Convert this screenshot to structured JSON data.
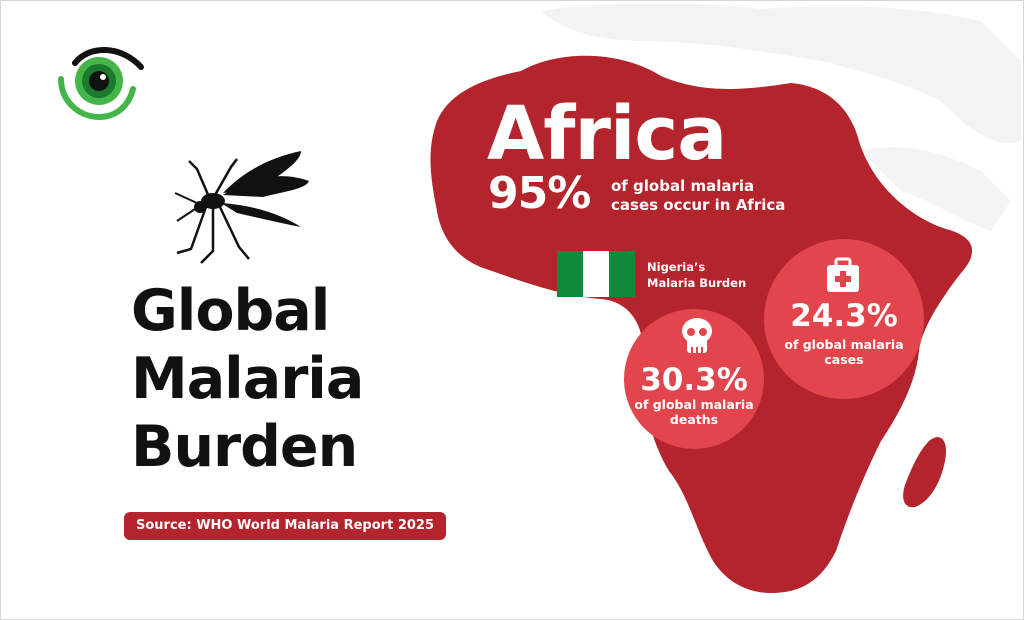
{
  "headline": {
    "line1": "Global",
    "line2": "Malaria",
    "line3": "Burden"
  },
  "source": "Source: WHO World Malaria Report 2025",
  "africa": {
    "title": "Africa",
    "share_pct": "95%",
    "share_desc_line1": "of global malaria",
    "share_desc_line2": "cases occur in Africa"
  },
  "nigeria": {
    "label_line1": "Nigeria’s",
    "label_line2": "Malaria Burden",
    "cases_pct": "24.3%",
    "cases_desc_line1": "of global malaria",
    "cases_desc_line2": "cases",
    "deaths_pct": "30.3%",
    "deaths_desc_line1": "of global malaria",
    "deaths_desc_line2": "deaths"
  },
  "icons": {
    "logo": "eye-logo-icon",
    "mosquito": "mosquito-icon",
    "medical_kit": "medical-kit-icon",
    "skull": "skull-icon",
    "flag": "nigeria-flag-icon"
  },
  "colors": {
    "map_red": "#b3242c",
    "circle_red": "#e2454b",
    "flag_green": "#0e8a3a",
    "logo_green": "#44b649",
    "text_dark": "#111111"
  }
}
